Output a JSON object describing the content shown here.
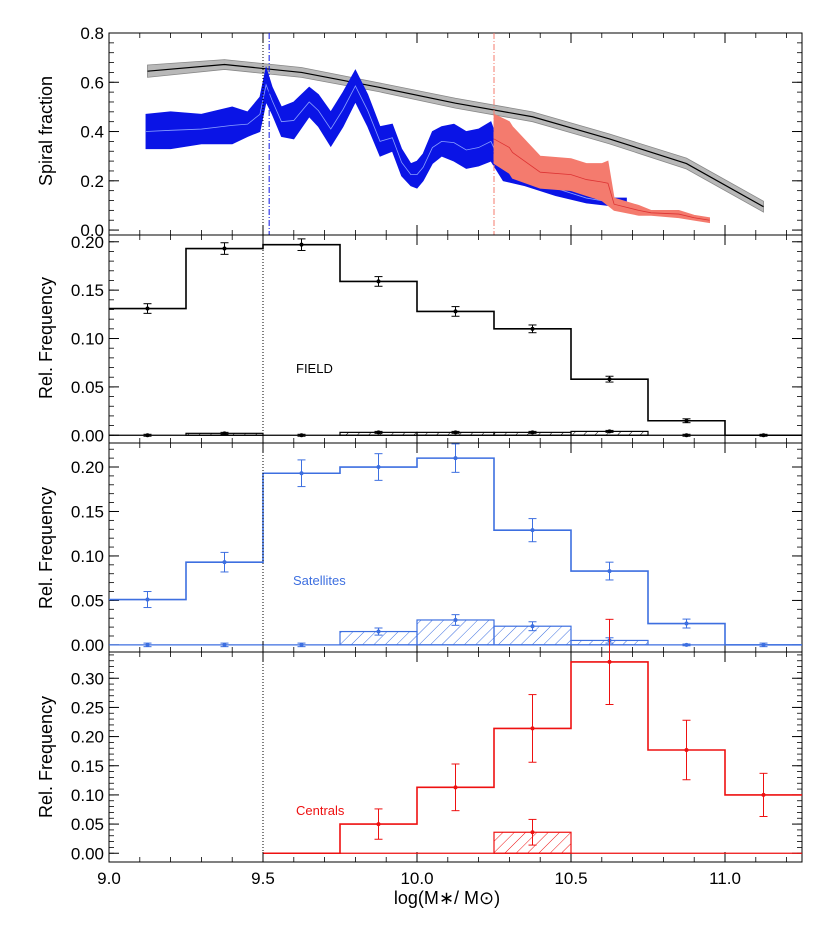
{
  "colors": {
    "field": "#000000",
    "satellites": "#3d6fe0",
    "centrals": "#ee1111",
    "band_blue": "#0a14e6",
    "band_salmon": "#f47b6e",
    "band_gray": "#b8b8b8",
    "line_blue_vline": "#0a14e6",
    "line_salmon_vline": "#f47b6e"
  },
  "xaxis": {
    "label": "log(M∗/ M⊙)",
    "range": [
      9.0,
      11.25
    ],
    "ticks": [
      9.0,
      9.5,
      10.0,
      10.5,
      11.0
    ],
    "tick_labels": [
      "9.0",
      "9.5",
      "10.0",
      "10.5",
      "11.0"
    ]
  },
  "chart_data": [
    {
      "type": "area",
      "panel": "spiral-fraction",
      "ylabel": "Spiral fraction",
      "ylim": [
        -0.02,
        0.8
      ],
      "yticks": [
        0.0,
        0.2,
        0.4,
        0.6,
        0.8
      ],
      "ytick_labels": [
        "0.0",
        "0.2",
        "0.4",
        "0.6",
        "0.8"
      ],
      "gray_band": {
        "x": [
          9.125,
          9.375,
          9.625,
          9.875,
          10.125,
          10.375,
          10.625,
          10.875,
          11.125
        ],
        "center": [
          0.645,
          0.672,
          0.64,
          0.58,
          0.515,
          0.46,
          0.37,
          0.27,
          0.095
        ],
        "half_width": [
          0.025,
          0.02,
          0.02,
          0.018,
          0.02,
          0.02,
          0.02,
          0.022,
          0.022
        ]
      },
      "blue_band": {
        "x": [
          9.12,
          9.2,
          9.3,
          9.4,
          9.45,
          9.49,
          9.51,
          9.53,
          9.56,
          9.6,
          9.65,
          9.68,
          9.72,
          9.76,
          9.8,
          9.84,
          9.88,
          9.92,
          9.95,
          9.98,
          10.0,
          10.02,
          10.05,
          10.08,
          10.12,
          10.16,
          10.2,
          10.24,
          10.28,
          10.35,
          10.45,
          10.55,
          10.62,
          10.68
        ],
        "upper": [
          0.47,
          0.48,
          0.47,
          0.5,
          0.48,
          0.54,
          0.66,
          0.58,
          0.5,
          0.52,
          0.58,
          0.55,
          0.48,
          0.56,
          0.65,
          0.55,
          0.42,
          0.43,
          0.33,
          0.27,
          0.28,
          0.31,
          0.4,
          0.42,
          0.43,
          0.4,
          0.41,
          0.44,
          0.3,
          0.27,
          0.2,
          0.15,
          0.13,
          0.13
        ],
        "lower": [
          0.33,
          0.33,
          0.35,
          0.35,
          0.38,
          0.4,
          0.52,
          0.47,
          0.38,
          0.37,
          0.46,
          0.42,
          0.34,
          0.42,
          0.52,
          0.42,
          0.3,
          0.32,
          0.22,
          0.18,
          0.17,
          0.2,
          0.27,
          0.3,
          0.28,
          0.25,
          0.26,
          0.28,
          0.2,
          0.18,
          0.14,
          0.11,
          0.1,
          0.1
        ]
      },
      "salmon_band": {
        "x": [
          10.25,
          10.3,
          10.31,
          10.4,
          10.5,
          10.55,
          10.6,
          10.62,
          10.64,
          10.72,
          10.76,
          10.85,
          10.9,
          10.95
        ],
        "upper": [
          0.47,
          0.44,
          0.42,
          0.3,
          0.29,
          0.27,
          0.27,
          0.28,
          0.13,
          0.1,
          0.08,
          0.08,
          0.06,
          0.05
        ],
        "lower": [
          0.27,
          0.23,
          0.21,
          0.17,
          0.16,
          0.14,
          0.12,
          0.1,
          0.08,
          0.06,
          0.06,
          0.05,
          0.04,
          0.03
        ]
      },
      "vlines": [
        {
          "x": 9.5,
          "color": "#000000",
          "style": "dotted"
        },
        {
          "x": 9.52,
          "color": "#0a14e6",
          "style": "dashdot"
        },
        {
          "x": 10.25,
          "color": "#f47b6e",
          "style": "dashdot"
        }
      ]
    },
    {
      "type": "bar",
      "panel": "field",
      "label": "FIELD",
      "ylabel": "Rel. Frequency",
      "ylim": [
        -0.008,
        0.207
      ],
      "yticks": [
        0.0,
        0.05,
        0.1,
        0.15,
        0.2
      ],
      "ytick_labels": [
        "0.00",
        "0.05",
        "0.10",
        "0.15",
        "0.20"
      ],
      "bin_edges": [
        9.0,
        9.25,
        9.5,
        9.75,
        10.0,
        10.25,
        10.5,
        10.75,
        11.0,
        11.25
      ],
      "values": [
        0.131,
        0.193,
        0.197,
        0.159,
        0.128,
        0.11,
        0.058,
        0.015,
        0.0
      ],
      "errors": [
        0.005,
        0.006,
        0.006,
        0.005,
        0.005,
        0.004,
        0.003,
        0.002,
        0.0
      ],
      "hatched_values": [
        0.0,
        0.002,
        0.0,
        0.003,
        0.003,
        0.003,
        0.004,
        0.0,
        0.0
      ],
      "hatched_errors": [
        0.001,
        0.001,
        0.001,
        0.001,
        0.001,
        0.001,
        0.001,
        0.001,
        0.001
      ]
    },
    {
      "type": "bar",
      "panel": "satellites",
      "label": "Satellites",
      "ylabel": "Rel. Frequency",
      "ylim": [
        -0.008,
        0.227
      ],
      "yticks": [
        0.0,
        0.05,
        0.1,
        0.15,
        0.2
      ],
      "ytick_labels": [
        "0.00",
        "0.05",
        "0.10",
        "0.15",
        "0.20"
      ],
      "bin_edges": [
        9.0,
        9.25,
        9.5,
        9.75,
        10.0,
        10.25,
        10.5,
        10.75,
        11.0,
        11.25
      ],
      "values": [
        0.051,
        0.093,
        0.193,
        0.2,
        0.21,
        0.129,
        0.083,
        0.024,
        0.0
      ],
      "errors": [
        0.009,
        0.011,
        0.015,
        0.015,
        0.016,
        0.013,
        0.01,
        0.005,
        0.0
      ],
      "hatched_values": [
        0.0,
        0.0,
        0.0,
        0.015,
        0.028,
        0.021,
        0.005,
        0.0,
        0.0
      ],
      "hatched_errors": [
        0.002,
        0.002,
        0.002,
        0.004,
        0.006,
        0.005,
        0.003,
        0.001,
        0.002
      ]
    },
    {
      "type": "bar",
      "panel": "centrals",
      "label": "Centrals",
      "ylabel": "Rel. Frequency",
      "ylim": [
        -0.015,
        0.345
      ],
      "yticks": [
        0.0,
        0.05,
        0.1,
        0.15,
        0.2,
        0.25,
        0.3
      ],
      "ytick_labels": [
        "0.00",
        "0.05",
        "0.10",
        "0.15",
        "0.20",
        "0.25",
        "0.30"
      ],
      "bin_edges": [
        9.5,
        9.75,
        10.0,
        10.25,
        10.5,
        10.75,
        11.0,
        11.25
      ],
      "values": [
        0.0,
        0.05,
        0.113,
        0.214,
        0.328,
        0.177,
        0.1
      ],
      "errors": [
        0.0,
        0.026,
        0.04,
        0.058,
        0.073,
        0.051,
        0.037
      ],
      "hatched_values": [
        0.0,
        0.0,
        0.0,
        0.036,
        0.0,
        0.0,
        0.0
      ],
      "hatched_errors": [
        0.0,
        0.0,
        0.0,
        0.022,
        0.0,
        0.0,
        0.0
      ]
    }
  ]
}
